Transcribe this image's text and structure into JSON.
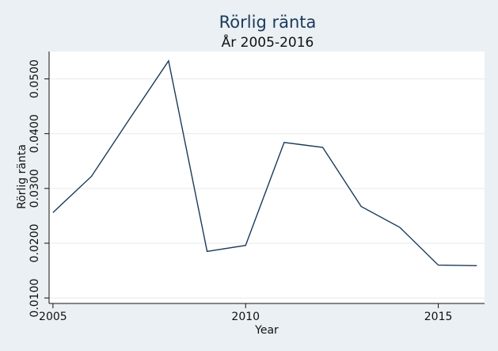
{
  "chart_data": {
    "type": "line",
    "title": "Rörlig ränta",
    "subtitle": "År 2005-2016",
    "xlabel": "Year",
    "ylabel": "Rörlig ränta",
    "x": [
      2005,
      2006,
      2007,
      2008,
      2009,
      2010,
      2011,
      2012,
      2013,
      2014,
      2015,
      2016
    ],
    "series": [
      {
        "values": [
          0.0256,
          0.0322,
          0.0428,
          0.0533,
          0.0185,
          0.0196,
          0.0384,
          0.0375,
          0.0267,
          0.0229,
          0.016,
          0.0159
        ]
      }
    ],
    "xlim": [
      2004.9,
      2016.2
    ],
    "ylim": [
      0.009,
      0.055
    ],
    "xticks": [
      "2005",
      "2010",
      "2015"
    ],
    "yticks": [
      "0.0100",
      "0.0200",
      "0.0300",
      "0.0400",
      "0.0500"
    ],
    "grid": true,
    "colors": {
      "background": "#eaf0f3",
      "plot_area": "#ffffff",
      "line": "#1b3a5c",
      "grid": "#e6e9ec"
    }
  }
}
